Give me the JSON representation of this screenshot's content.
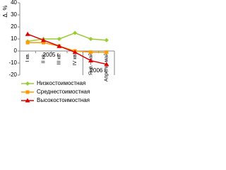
{
  "chart_data": {
    "type": "line",
    "y_label": "Δ, %",
    "categories": [
      "I кв.",
      "II кв.",
      "III кв.",
      "IV кв.",
      "Янв.–май",
      "Апрель–май"
    ],
    "group_labels": [
      "2005 г.",
      "2006 г."
    ],
    "series": [
      {
        "name": "Низкостоимостная",
        "color": "#99cc33",
        "marker": "diamond",
        "values": [
          8,
          10,
          10,
          15,
          10,
          9
        ]
      },
      {
        "name": "Среднестоимостная",
        "color": "#ff9900",
        "marker": "square",
        "values": [
          7,
          7,
          4,
          0,
          -1,
          -1
        ]
      },
      {
        "name": "Высокостоимостная",
        "color": "#dd0000",
        "marker": "triangle",
        "values": [
          14,
          9,
          4,
          -1,
          -8,
          -11
        ]
      }
    ],
    "ylim": [
      -20,
      40
    ],
    "yticks": [
      -20,
      -10,
      0,
      10,
      20,
      30,
      40
    ],
    "grid": false
  }
}
